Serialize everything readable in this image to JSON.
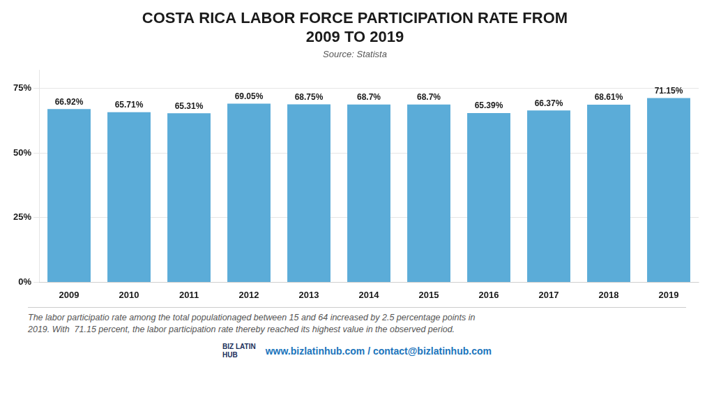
{
  "chart_data": {
    "type": "bar",
    "title": "COSTA RICA LABOR FORCE PARTICIPATION RATE FROM\n2009 TO 2019",
    "subtitle": "Source: Statista",
    "categories": [
      "2009",
      "2010",
      "2011",
      "2012",
      "2013",
      "2014",
      "2015",
      "2016",
      "2017",
      "2018",
      "2019"
    ],
    "values": [
      66.92,
      65.71,
      65.31,
      69.05,
      68.75,
      68.7,
      68.7,
      65.39,
      66.37,
      68.61,
      71.15
    ],
    "value_labels": [
      "66.92%",
      "65.71%",
      "65.31%",
      "69.05%",
      "68.75%",
      "68.7%",
      "68.7%",
      "65.39%",
      "66.37%",
      "68.61%",
      "71.15%"
    ],
    "data_labels": true,
    "color": "#5BACD8",
    "ylim": [
      0,
      82
    ],
    "yticks": [
      {
        "value": 0,
        "label": "0%"
      },
      {
        "value": 25,
        "label": "25%"
      },
      {
        "value": 50,
        "label": "50%"
      },
      {
        "value": 75,
        "label": "75%"
      }
    ],
    "grid": true,
    "annotations": [
      "The labor participatio rate among the total populationaged between 15 and 64 increased by 2.5 percentage points in\n2019. With  71.15 percent, the labor participation rate thereby reached its highest value in the observed period.",
      "BIZ LATIN",
      "HUB",
      "www.bizlatinhub.com / contact@bizlatinhub.com"
    ]
  }
}
